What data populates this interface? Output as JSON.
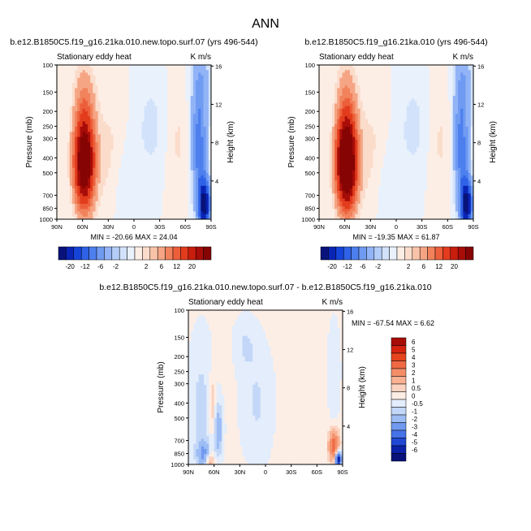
{
  "page": {
    "title": "ANN"
  },
  "panels": [
    {
      "id": "top-left",
      "title": "b.e12.B1850C5.f19_g16.21ka.010.new.topo.surf.07 (yrs 496-544)",
      "left_label": "Stationary eddy heat",
      "right_label": "K m/s",
      "ylabel": "Pressure (mb)",
      "ylabel_right": "Height (km)",
      "stats": "MIN = -20.66   MAX =  24.04"
    },
    {
      "id": "top-right",
      "title": "b.e12.B1850C5.f19_g16.21ka.010 (yrs 496-544)",
      "left_label": "Stationary eddy heat",
      "right_label": "K m/s",
      "ylabel": "Pressure (mb)",
      "ylabel_right": "Height (km)",
      "stats": "MIN = -19.35   MAX =  61.87"
    },
    {
      "id": "bottom",
      "title": "b.e12.B1850C5.f19_g16.21ka.010.new.topo.surf.07 - b.e12.B1850C5.f19_g16.21ka.010",
      "left_label": "Stationary eddy heat",
      "right_label": "K m/s",
      "ylabel": "Pressure (mb)",
      "ylabel_right": "Height (km)",
      "stats": "MIN = -67.54   MAX =   6.62"
    }
  ],
  "axes": {
    "x_ticks": [
      "90N",
      "60N",
      "30N",
      "0",
      "30S",
      "60S",
      "90S"
    ],
    "pressure_ticks": [
      "100",
      "150",
      "200",
      "250",
      "300",
      "400",
      "500",
      "700",
      "850",
      "1000"
    ],
    "height_ticks": [
      "16",
      "12",
      "8",
      "4"
    ]
  },
  "colorbar_top": {
    "labels": [
      "-20",
      "-12",
      "-6",
      "-2",
      "2",
      "6",
      "12",
      "20"
    ],
    "colors": [
      "#08127a",
      "#0a24b5",
      "#1544d9",
      "#2f62e6",
      "#4d7fee",
      "#6f9bf2",
      "#92b4f6",
      "#b3cdf8",
      "#d2e2fb",
      "#e9f1fd",
      "#fdeee5",
      "#fbdccb",
      "#f8c3a8",
      "#f5a584",
      "#f1825c",
      "#ec5f3a",
      "#e23c1d",
      "#c91d0e",
      "#a80d08",
      "#860404"
    ]
  },
  "colorbar_diff": {
    "labels": [
      "6",
      "5",
      "4",
      "3",
      "2",
      "1",
      "0.5",
      "0",
      "-0.5",
      "-1",
      "-2",
      "-3",
      "-4",
      "-5",
      "-6"
    ],
    "colors": [
      "#a80d08",
      "#d4230f",
      "#e6451f",
      "#ef6a44",
      "#f48e69",
      "#f8b192",
      "#fbd3c0",
      "#fdeee5",
      "#e3edfb",
      "#c3d7f8",
      "#9cbcf4",
      "#7199ef",
      "#4773e8",
      "#2148d4",
      "#0b22a8",
      "#08127a"
    ]
  },
  "chart_data": [
    {
      "type": "heatmap",
      "title": "b.e12.B1850C5.f19_g16.21ka.010.new.topo.surf.07 (yrs 496-544)",
      "variable": "Stationary eddy heat",
      "units": "K m/s",
      "xlabel": "",
      "ylabel": "Pressure (mb)",
      "ylabel_right": "Height (km)",
      "x_range": [
        "90N",
        "90S"
      ],
      "y_range_mb": [
        1000,
        100
      ],
      "min": -20.66,
      "max": 24.04,
      "levels": [
        -20,
        -16,
        -12,
        -8,
        -6,
        -4,
        -2,
        -1,
        1,
        2,
        4,
        6,
        8,
        12,
        16,
        20
      ],
      "features": [
        {
          "sign": "positive",
          "lat_center": 58,
          "lat_width": 11,
          "p_top": 120,
          "p_bottom": 1000,
          "peak": 24.04
        },
        {
          "sign": "negative",
          "lat_center": -80,
          "lat_width": 8,
          "p_top": 100,
          "p_bottom": 1000,
          "peak": -20.66
        }
      ]
    },
    {
      "type": "heatmap",
      "title": "b.e12.B1850C5.f19_g16.21ka.010 (yrs 496-544)",
      "variable": "Stationary eddy heat",
      "units": "K m/s",
      "xlabel": "",
      "ylabel": "Pressure (mb)",
      "ylabel_right": "Height (km)",
      "x_range": [
        "90N",
        "90S"
      ],
      "y_range_mb": [
        1000,
        100
      ],
      "min": -19.35,
      "max": 61.87,
      "levels": [
        -20,
        -16,
        -12,
        -8,
        -6,
        -4,
        -2,
        -1,
        1,
        2,
        4,
        6,
        8,
        12,
        16,
        20
      ],
      "features": [
        {
          "sign": "positive",
          "lat_center": 58,
          "lat_width": 11,
          "p_top": 120,
          "p_bottom": 1000,
          "peak": 61.87
        },
        {
          "sign": "negative",
          "lat_center": -80,
          "lat_width": 8,
          "p_top": 100,
          "p_bottom": 1000,
          "peak": -19.35
        }
      ]
    },
    {
      "type": "heatmap",
      "title": "b.e12.B1850C5.f19_g16.21ka.010.new.topo.surf.07 - b.e12.B1850C5.f19_g16.21ka.010",
      "variable": "Stationary eddy heat",
      "units": "K m/s",
      "xlabel": "",
      "ylabel": "Pressure (mb)",
      "ylabel_right": "Height (km)",
      "x_range": [
        "90N",
        "90S"
      ],
      "y_range_mb": [
        1000,
        100
      ],
      "min": -67.54,
      "max": 6.62,
      "levels": [
        -6,
        -5,
        -4,
        -3,
        -2,
        -1,
        -0.5,
        0,
        0.5,
        1,
        2,
        3,
        4,
        5,
        6
      ],
      "features": [
        {
          "sign": "mixed",
          "lat_center": 65,
          "lat_width": 20,
          "p_top": 150,
          "p_bottom": 1000,
          "peak": -3
        },
        {
          "sign": "positive",
          "lat_center": -83,
          "lat_width": 6,
          "p_top": 500,
          "p_bottom": 1000,
          "peak": 6.62
        },
        {
          "sign": "negative",
          "lat_center": -85,
          "lat_width": 4,
          "p_top": 700,
          "p_bottom": 1000,
          "peak": -67.54
        }
      ]
    }
  ]
}
